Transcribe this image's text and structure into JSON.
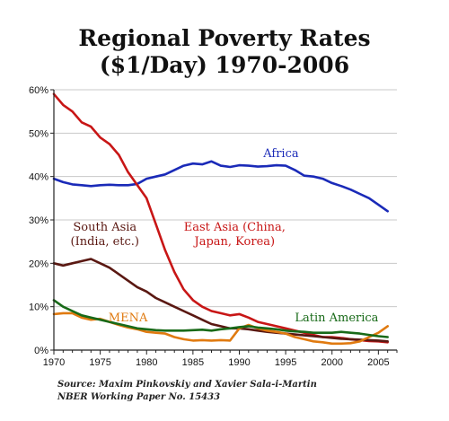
{
  "title_line1": "Regional Poverty Rates",
  "title_line2": "($1/Day) 1970-2006",
  "source_line1": "Source: Maxim Pinkovskiy and Xavier Sala-i-Martin",
  "source_line2": "NBER Working Paper No. 15433",
  "chart_data": {
    "type": "line",
    "title": "Regional Poverty Rates ($1/Day) 1970-2006",
    "xlabel": "",
    "ylabel": "",
    "xlim": [
      1970,
      2007
    ],
    "ylim": [
      0,
      60
    ],
    "x_ticks": [
      1970,
      1975,
      1980,
      1985,
      1990,
      1995,
      2000,
      2005
    ],
    "y_ticks": [
      {
        "value": 0,
        "label": "0%"
      },
      {
        "value": 10,
        "label": "10%"
      },
      {
        "value": 20,
        "label": "20%"
      },
      {
        "value": 30,
        "label": "30%"
      },
      {
        "value": 40,
        "label": "40%"
      },
      {
        "value": 50,
        "label": "50%"
      },
      {
        "value": 60,
        "label": "60%"
      }
    ],
    "grid": "horizontal",
    "series": [
      {
        "name": "Africa",
        "color": "#1a2ab8",
        "label_lines": [
          "Africa"
        ],
        "label_color": "#1a2ab8",
        "label_at": {
          "x": 1994.5,
          "y": 44.5
        },
        "x": [
          1970,
          1971,
          1972,
          1973,
          1974,
          1975,
          1976,
          1977,
          1978,
          1979,
          1980,
          1981,
          1982,
          1983,
          1984,
          1985,
          1986,
          1987,
          1988,
          1989,
          1990,
          1991,
          1992,
          1993,
          1994,
          1995,
          1996,
          1997,
          1998,
          1999,
          2000,
          2001,
          2002,
          2003,
          2004,
          2005,
          2006
        ],
        "values": [
          39.5,
          38.7,
          38.2,
          38,
          37.8,
          38,
          38.1,
          38,
          38,
          38.3,
          39.5,
          40,
          40.5,
          41.5,
          42.5,
          43,
          42.8,
          43.5,
          42.5,
          42.2,
          42.6,
          42.5,
          42.3,
          42.4,
          42.6,
          42.5,
          41.5,
          40.2,
          40,
          39.5,
          38.5,
          37.8,
          37,
          36,
          35,
          33.5,
          32
        ]
      },
      {
        "name": "East Asia (China, Japan, Korea)",
        "color": "#c81616",
        "label_lines": [
          "East Asia (China,",
          "Japan, Korea)"
        ],
        "label_color": "#c81616",
        "label_at": {
          "x": 1989.5,
          "y": 27.5
        },
        "x": [
          1970,
          1971,
          1972,
          1973,
          1974,
          1975,
          1976,
          1977,
          1978,
          1979,
          1980,
          1981,
          1982,
          1983,
          1984,
          1985,
          1986,
          1987,
          1988,
          1989,
          1990,
          1991,
          1992,
          1993,
          1994,
          1995,
          1996,
          1997,
          1998,
          1999,
          2000,
          2001,
          2002,
          2003,
          2004,
          2005,
          2006
        ],
        "values": [
          59,
          56.5,
          55,
          52.5,
          51.5,
          49,
          47.5,
          45,
          41,
          38,
          35,
          29,
          23,
          18,
          14,
          11.5,
          10,
          9,
          8.5,
          8,
          8.3,
          7.5,
          6.5,
          6,
          5.5,
          5,
          4.5,
          4,
          3.5,
          3,
          3,
          2.8,
          2.5,
          2.3,
          2.1,
          2,
          1.8
        ]
      },
      {
        "name": "South Asia (India, etc.)",
        "color": "#5a1812",
        "label_lines": [
          "South Asia",
          "(India, etc.)"
        ],
        "label_color": "#5a1812",
        "label_at": {
          "x": 1975.5,
          "y": 27.5
        },
        "x": [
          1970,
          1971,
          1972,
          1973,
          1974,
          1975,
          1976,
          1977,
          1978,
          1979,
          1980,
          1981,
          1982,
          1983,
          1984,
          1985,
          1986,
          1987,
          1988,
          1989,
          1990,
          1991,
          1992,
          1993,
          1994,
          1995,
          1996,
          1997,
          1998,
          1999,
          2000,
          2001,
          2002,
          2003,
          2004,
          2005,
          2006
        ],
        "values": [
          20,
          19.5,
          20,
          20.5,
          21,
          20,
          19,
          17.5,
          16,
          14.5,
          13.5,
          12,
          11,
          10,
          9,
          8,
          7,
          6,
          5.5,
          5,
          5,
          4.8,
          4.5,
          4.2,
          4,
          3.8,
          3.6,
          3.4,
          3.2,
          3,
          2.8,
          2.6,
          2.5,
          2.4,
          2.3,
          2.2,
          2
        ]
      },
      {
        "name": "MENA",
        "color": "#e07a10",
        "label_lines": [
          "MENA"
        ],
        "label_color": "#e07a10",
        "label_at": {
          "x": 1978,
          "y": 6.6
        },
        "x": [
          1970,
          1971,
          1972,
          1973,
          1974,
          1975,
          1976,
          1977,
          1978,
          1979,
          1980,
          1981,
          1982,
          1983,
          1984,
          1985,
          1986,
          1987,
          1988,
          1989,
          1990,
          1991,
          1992,
          1993,
          1994,
          1995,
          1996,
          1997,
          1998,
          1999,
          2000,
          2001,
          2002,
          2003,
          2004,
          2005,
          2006
        ],
        "values": [
          8.3,
          8.5,
          8.5,
          7.5,
          7,
          7.2,
          6.5,
          5.8,
          5.2,
          4.8,
          4.2,
          4,
          3.8,
          3,
          2.5,
          2.2,
          2.3,
          2.2,
          2.3,
          2.2,
          5,
          5.8,
          5,
          4.5,
          4.2,
          3.8,
          3,
          2.5,
          2,
          1.8,
          1.5,
          1.5,
          1.6,
          2,
          3,
          4,
          5.5
        ]
      },
      {
        "name": "Latin America",
        "color": "#186a18",
        "label_lines": [
          "Latin America"
        ],
        "label_color": "#186a18",
        "label_at": {
          "x": 2000.5,
          "y": 6.6
        },
        "x": [
          1970,
          1971,
          1972,
          1973,
          1974,
          1975,
          1976,
          1977,
          1978,
          1979,
          1980,
          1981,
          1982,
          1983,
          1984,
          1985,
          1986,
          1987,
          1988,
          1989,
          1990,
          1991,
          1992,
          1993,
          1994,
          1995,
          1996,
          1997,
          1998,
          1999,
          2000,
          2001,
          2002,
          2003,
          2004,
          2005,
          2006
        ],
        "values": [
          11.5,
          10,
          9,
          8,
          7.5,
          7,
          6.5,
          6,
          5.5,
          5,
          4.8,
          4.6,
          4.5,
          4.5,
          4.5,
          4.6,
          4.7,
          4.5,
          4.8,
          5,
          5.3,
          5.5,
          5.2,
          5,
          4.8,
          4.5,
          4.3,
          4.2,
          4,
          4,
          4,
          4.2,
          4,
          3.8,
          3.5,
          3.2,
          3
        ]
      }
    ]
  }
}
